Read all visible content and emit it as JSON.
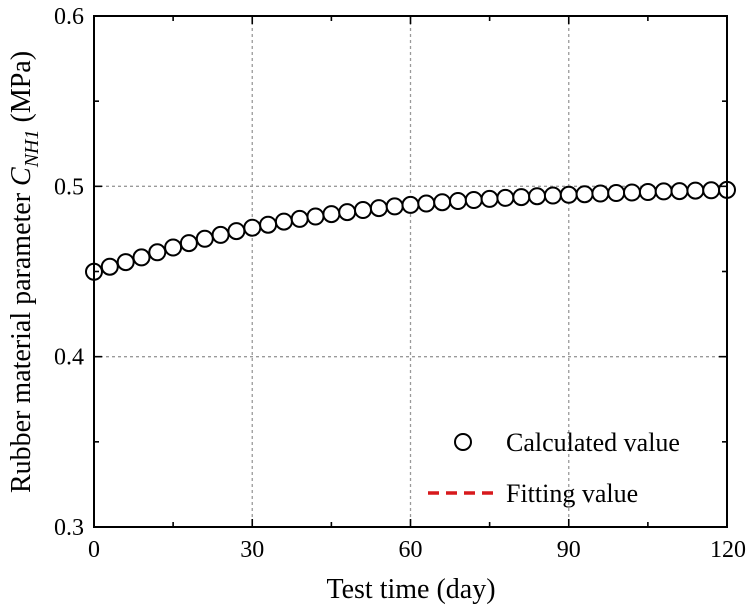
{
  "chart_data": {
    "type": "scatter",
    "title": "",
    "xlabel": "Test time (day)",
    "ylabel": {
      "prefix": "Rubber material parameter ",
      "symbol": "C",
      "subscript": "NH1",
      "suffix": " (MPa)"
    },
    "xlim": [
      0,
      120
    ],
    "ylim": [
      0.3,
      0.6
    ],
    "xticks": [
      0,
      30,
      60,
      90,
      120
    ],
    "xtick_labels": [
      "0",
      "30",
      "60",
      "90",
      "120"
    ],
    "yticks": [
      0.3,
      0.4,
      0.5,
      0.6
    ],
    "ytick_labels": [
      "0.3",
      "0.4",
      "0.5",
      "0.6"
    ],
    "grid": true,
    "legend_position": "bottom-right",
    "series": [
      {
        "name": "Calculated value",
        "style": "open-circle",
        "color": "#000000",
        "x": [
          0,
          3,
          6,
          9,
          12,
          15,
          18,
          21,
          24,
          27,
          30,
          33,
          36,
          39,
          42,
          45,
          48,
          51,
          54,
          57,
          60,
          63,
          66,
          69,
          72,
          75,
          78,
          81,
          84,
          87,
          90,
          93,
          96,
          99,
          102,
          105,
          108,
          111,
          114,
          117,
          120
        ],
        "y": [
          0.4498,
          0.4528,
          0.4555,
          0.4583,
          0.4613,
          0.4641,
          0.4667,
          0.4692,
          0.4715,
          0.4737,
          0.4757,
          0.4775,
          0.4793,
          0.4809,
          0.4823,
          0.4837,
          0.4849,
          0.4861,
          0.4872,
          0.4882,
          0.4891,
          0.4899,
          0.4907,
          0.4914,
          0.492,
          0.4926,
          0.4932,
          0.4937,
          0.4942,
          0.4946,
          0.495,
          0.4954,
          0.4958,
          0.4961,
          0.4964,
          0.4967,
          0.497,
          0.4972,
          0.4975,
          0.4977,
          0.4979
        ]
      },
      {
        "name": "Fitting value",
        "style": "dashed-line",
        "color": "#d7191c",
        "x": [
          0,
          3,
          6,
          9,
          12,
          15,
          18,
          21,
          24,
          27,
          30,
          33,
          36,
          39,
          42,
          45,
          48,
          51,
          54,
          57,
          60,
          63,
          66,
          69,
          72,
          75,
          78,
          81,
          84,
          87,
          90,
          93,
          96,
          99,
          102,
          105,
          108,
          111,
          114,
          117,
          120
        ],
        "y": [
          0.4498,
          0.4528,
          0.4555,
          0.4583,
          0.4613,
          0.4641,
          0.4667,
          0.4692,
          0.4715,
          0.4737,
          0.4757,
          0.4775,
          0.4793,
          0.4809,
          0.4823,
          0.4837,
          0.4849,
          0.4861,
          0.4872,
          0.4882,
          0.4891,
          0.4899,
          0.4907,
          0.4914,
          0.492,
          0.4926,
          0.4932,
          0.4937,
          0.4942,
          0.4946,
          0.495,
          0.4954,
          0.4958,
          0.4961,
          0.4964,
          0.4967,
          0.497,
          0.4972,
          0.4975,
          0.4977,
          0.4979
        ]
      }
    ]
  }
}
